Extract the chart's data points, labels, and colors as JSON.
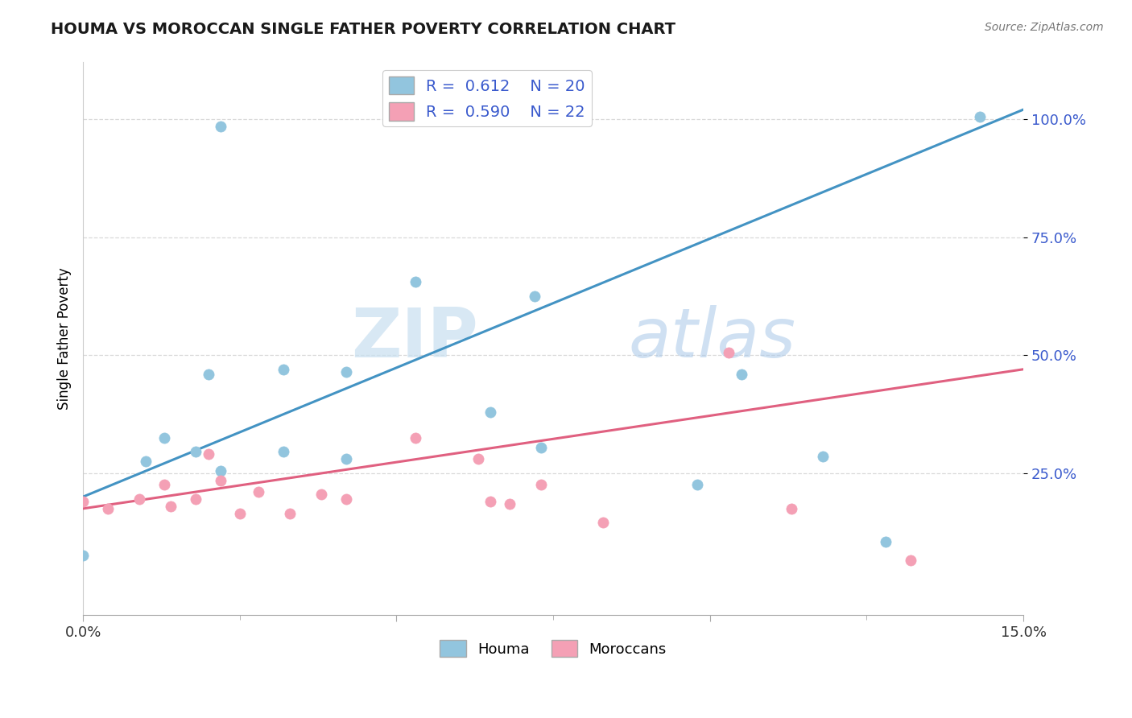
{
  "title": "HOUMA VS MOROCCAN SINGLE FATHER POVERTY CORRELATION CHART",
  "source_text": "Source: ZipAtlas.com",
  "ylabel": "Single Father Poverty",
  "xlim": [
    0.0,
    0.15
  ],
  "ylim": [
    -0.05,
    1.12
  ],
  "xtick_positions": [
    0.0,
    0.05,
    0.1,
    0.15
  ],
  "xtick_labels": [
    "0.0%",
    "",
    "",
    "15.0%"
  ],
  "xtick_minor": [
    0.0,
    0.025,
    0.05,
    0.075,
    0.1,
    0.125,
    0.15
  ],
  "yticks": [
    0.25,
    0.5,
    0.75,
    1.0
  ],
  "ytick_labels": [
    "25.0%",
    "50.0%",
    "75.0%",
    "100.0%"
  ],
  "houma_color": "#92c5de",
  "moroccan_color": "#f4a0b5",
  "houma_line_color": "#4393c3",
  "moroccan_line_color": "#e06080",
  "houma_R": 0.612,
  "houma_N": 20,
  "moroccan_R": 0.59,
  "moroccan_N": 22,
  "legend_R_color": "#3a5acd",
  "watermark_zip": "ZIP",
  "watermark_atlas": "atlas",
  "houma_line_y0": 0.2,
  "houma_line_y1": 1.02,
  "moroccan_line_y0": 0.175,
  "moroccan_line_y1": 0.47,
  "houma_x": [
    0.022,
    0.0,
    0.02,
    0.032,
    0.042,
    0.053,
    0.01,
    0.013,
    0.018,
    0.022,
    0.032,
    0.042,
    0.065,
    0.072,
    0.073,
    0.098,
    0.105,
    0.118,
    0.128,
    0.143
  ],
  "houma_y": [
    0.985,
    0.075,
    0.46,
    0.47,
    0.28,
    0.655,
    0.275,
    0.325,
    0.295,
    0.255,
    0.295,
    0.465,
    0.38,
    0.625,
    0.305,
    0.225,
    0.46,
    0.285,
    0.105,
    1.005
  ],
  "moroccan_x": [
    0.0,
    0.004,
    0.009,
    0.013,
    0.014,
    0.018,
    0.02,
    0.022,
    0.025,
    0.028,
    0.033,
    0.038,
    0.042,
    0.053,
    0.063,
    0.065,
    0.068,
    0.073,
    0.083,
    0.103,
    0.113,
    0.132
  ],
  "moroccan_y": [
    0.19,
    0.175,
    0.195,
    0.225,
    0.18,
    0.195,
    0.29,
    0.235,
    0.165,
    0.21,
    0.165,
    0.205,
    0.195,
    0.325,
    0.28,
    0.19,
    0.185,
    0.225,
    0.145,
    0.505,
    0.175,
    0.065
  ],
  "background_color": "#ffffff",
  "grid_color": "#d0d0d0",
  "grid_style": "--",
  "grid_alpha": 0.8
}
